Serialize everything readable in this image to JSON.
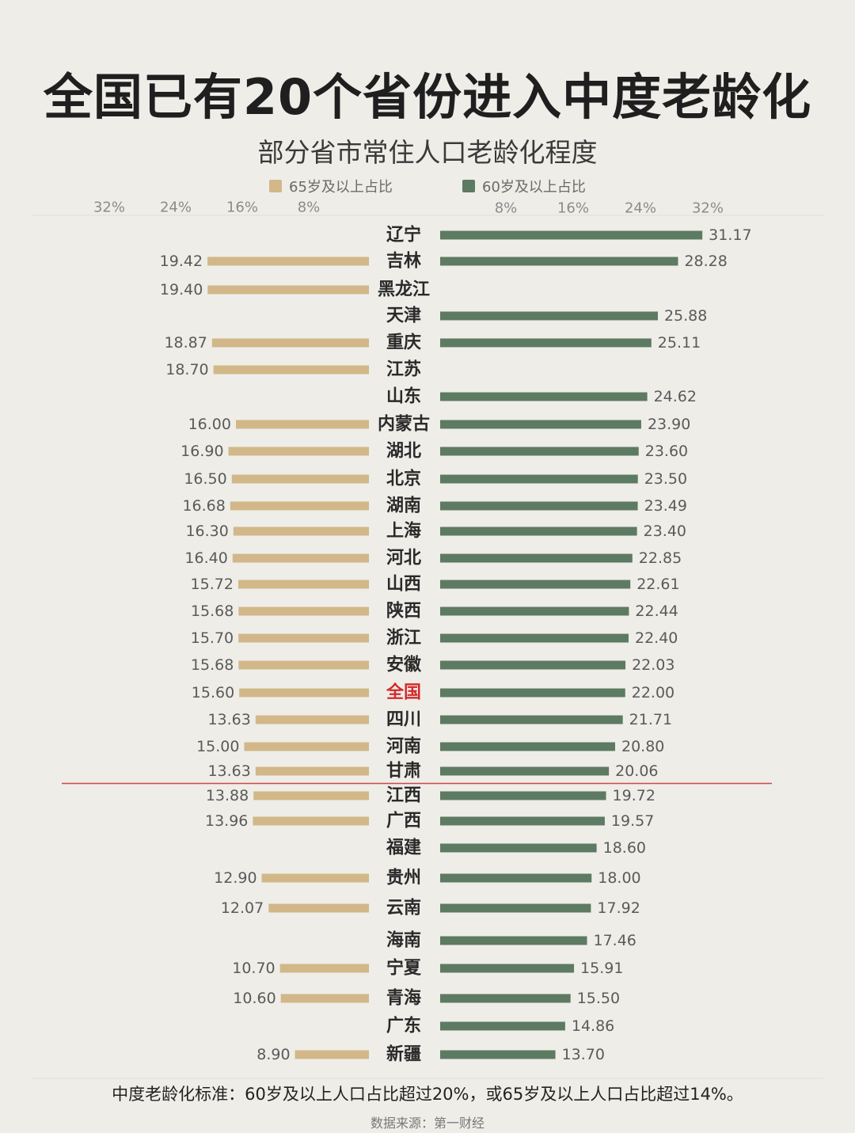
{
  "title": "全国已有20个省份进入中度老龄化",
  "subtitle": "部分省市常住人口老龄化程度",
  "footnote": "中度老龄化标准：60岁及以上人口占比超过20%，或65岁及以上人口占比超过14%。",
  "source": "数据来源：第一财经",
  "colors": {
    "tan": "#d2b788",
    "green": "#5d7a63",
    "highlight": "#d42a2a",
    "threshold_line": "#c9474a",
    "background": "#efede8"
  },
  "chart_data": {
    "type": "bar",
    "orientation": "horizontal-diverging",
    "categories": [
      "辽宁",
      "吉林",
      "黑龙江",
      "天津",
      "重庆",
      "江苏",
      "山东",
      "内蒙古",
      "湖北",
      "北京",
      "湖南",
      "上海",
      "河北",
      "山西",
      "陕西",
      "浙江",
      "安徽",
      "全国",
      "四川",
      "河南",
      "甘肃",
      "江西",
      "广西",
      "福建",
      "贵州",
      "云南",
      "海南",
      "宁夏",
      "青海",
      "广东",
      "新疆"
    ],
    "highlight_category": "全国",
    "series": [
      {
        "name": "65岁及以上占比",
        "side": "left",
        "values": [
          null,
          19.42,
          19.4,
          null,
          18.87,
          18.7,
          null,
          16.0,
          16.9,
          16.5,
          16.68,
          16.3,
          16.4,
          15.72,
          15.68,
          15.7,
          15.68,
          15.6,
          13.63,
          15.0,
          13.63,
          13.88,
          13.96,
          null,
          12.9,
          12.07,
          null,
          10.7,
          10.6,
          null,
          8.9
        ],
        "labels": [
          null,
          "19.42",
          "19.40",
          null,
          "18.87",
          "18.70",
          null,
          "16.00",
          "16.90",
          "16.50",
          "16.68",
          "16.30",
          "16.40",
          "15.72",
          "15.68",
          "15.70",
          "15.68",
          "15.60",
          "13.63",
          "15.00",
          "13.63",
          "13.88",
          "13.96",
          null,
          "12.90",
          "12.07",
          null,
          "10.70",
          "10.60",
          null,
          "8.90"
        ]
      },
      {
        "name": "60岁及以上占比",
        "side": "right",
        "values": [
          31.17,
          28.28,
          null,
          25.88,
          25.11,
          null,
          24.62,
          23.9,
          23.6,
          23.5,
          23.49,
          23.4,
          22.85,
          22.61,
          22.44,
          22.4,
          22.03,
          22.0,
          21.71,
          20.8,
          20.06,
          19.72,
          19.57,
          18.6,
          18.0,
          17.92,
          17.46,
          15.91,
          15.5,
          14.86,
          13.7
        ],
        "labels": [
          "31.17",
          "28.28",
          null,
          "25.88",
          "25.11",
          null,
          "24.62",
          "23.90",
          "23.60",
          "23.50",
          "23.49",
          "23.40",
          "22.85",
          "22.61",
          "22.44",
          "22.40",
          "22.03",
          "22.00",
          "21.71",
          "20.80",
          "20.06",
          "19.72",
          "19.57",
          "18.60",
          "18.00",
          "17.92",
          "17.46",
          "15.91",
          "15.50",
          "14.86",
          "13.70"
        ]
      }
    ],
    "left_axis_ticks": [
      "32%",
      "24%",
      "16%",
      "8%"
    ],
    "right_axis_ticks": [
      "8%",
      "16%",
      "24%",
      "32%"
    ],
    "xlim": [
      0,
      32
    ],
    "grid": false,
    "legend_position": "top",
    "threshold_after_category": "甘肃"
  }
}
